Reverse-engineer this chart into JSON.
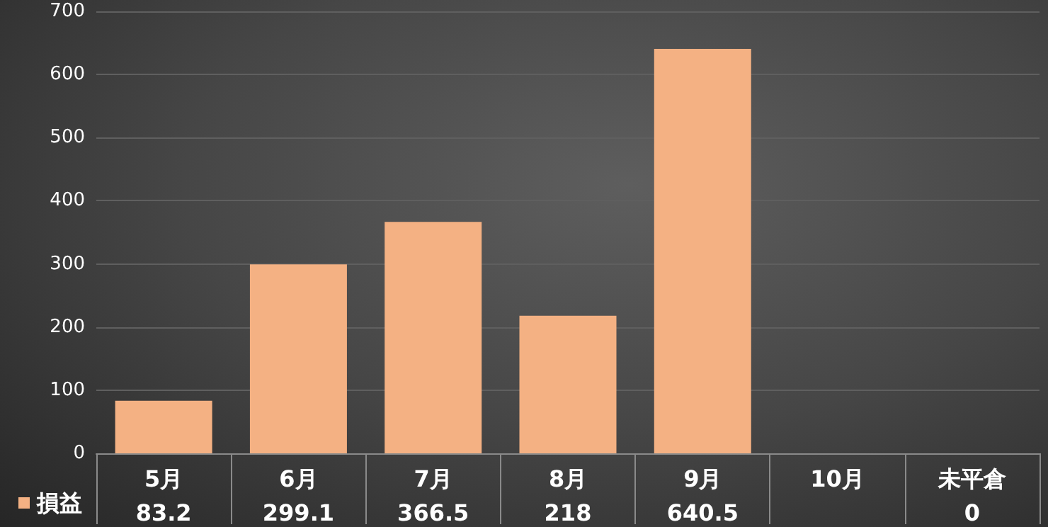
{
  "chart_data": {
    "type": "bar",
    "categories": [
      "5月",
      "6月",
      "7月",
      "8月",
      "9月",
      "10月",
      "未平倉"
    ],
    "series": [
      {
        "name": "損益",
        "color": "#f4b183",
        "values": [
          83.2,
          299.1,
          366.5,
          218,
          640.5,
          null,
          0
        ]
      }
    ],
    "ylim": [
      0,
      700
    ],
    "yticks": [
      0,
      100,
      200,
      300,
      400,
      500,
      600,
      700
    ],
    "grid": "y",
    "legend": "bottom left",
    "data_labels": true
  }
}
